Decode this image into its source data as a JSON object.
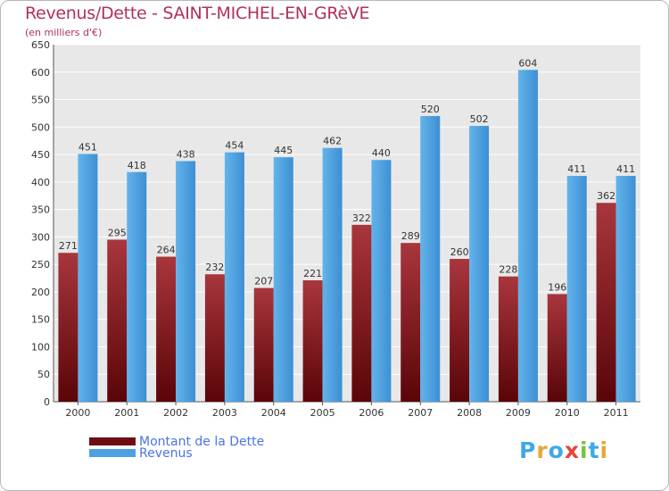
{
  "header": {
    "title": "Revenus/Dette - SAINT-MICHEL-EN-GRèVE",
    "subtitle": "(en milliers d'€)"
  },
  "legend": {
    "items": [
      {
        "label": "Montant de la Dette",
        "color": "#6b0f14"
      },
      {
        "label": "Revenus",
        "color": "#4da1e3"
      }
    ]
  },
  "logo": {
    "text": "Proxiti",
    "letter_colors": [
      "#3fa9e8",
      "#e8a53a",
      "#3fa9e8",
      "#e8443a",
      "#7bc043",
      "#3fa9e8",
      "#e8a53a"
    ]
  },
  "colors": {
    "title": "#b0305c",
    "debt_dark": "#5a0508",
    "debt_light": "#a8363d",
    "revenue_dark": "#2f7fc6",
    "revenue_light": "#63b3ea",
    "plot_bg": "#e8e8e8",
    "grid": "#ffffff"
  },
  "chart_data": {
    "type": "bar",
    "title": "Revenus/Dette - SAINT-MICHEL-EN-GRèVE",
    "subtitle": "(en milliers d'€)",
    "categories": [
      "2000",
      "2001",
      "2002",
      "2003",
      "2004",
      "2005",
      "2006",
      "2007",
      "2008",
      "2009",
      "2010",
      "2011"
    ],
    "series": [
      {
        "name": "Montant de la Dette",
        "values": [
          271,
          295,
          264,
          232,
          207,
          221,
          322,
          289,
          260,
          228,
          196,
          362
        ]
      },
      {
        "name": "Revenus",
        "values": [
          451,
          418,
          438,
          454,
          445,
          462,
          440,
          520,
          502,
          604,
          411,
          411
        ]
      }
    ],
    "ylim": [
      0,
      650
    ],
    "yticks": [
      0,
      50,
      100,
      150,
      200,
      250,
      300,
      350,
      400,
      450,
      500,
      550,
      600,
      650
    ],
    "grid": true,
    "legend_position": "bottom-left"
  }
}
